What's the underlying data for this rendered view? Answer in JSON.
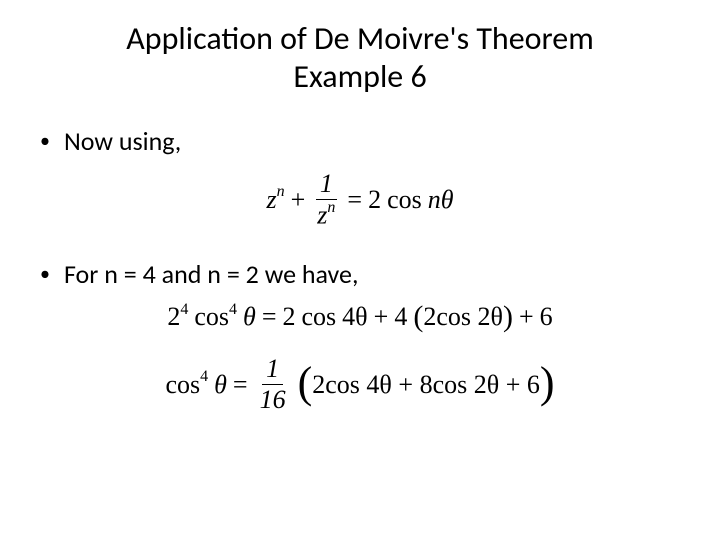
{
  "title_line1": "Application of De Moivre's Theorem",
  "title_line2": "Example 6",
  "bullet1": "Now using,",
  "bullet2": "For n = 4 and n = 2 we have,",
  "eq1": {
    "lhs_var": "z",
    "lhs_exp": "n",
    "plus": "+",
    "frac_num": "1",
    "frac_den_var": "z",
    "frac_den_exp": "n",
    "equals": "=",
    "rhs_coef": "2",
    "rhs_cos": "cos",
    "rhs_ntheta": "nθ"
  },
  "eq2": {
    "coef": "2",
    "coef_exp": "4",
    "cos": "cos",
    "cos_exp": "4",
    "theta": "θ",
    "equals": "=",
    "t1_coef": "2",
    "t1_cos": "cos",
    "t1_arg": "4θ",
    "plus1": "+",
    "t2_coef": "4",
    "t2_inner_coef": "2",
    "t2_inner_cos": "cos",
    "t2_inner_arg": "2θ",
    "plus2": "+",
    "const": "6"
  },
  "eq3": {
    "cos": "cos",
    "cos_exp": "4",
    "theta": "θ",
    "equals": "=",
    "frac_num": "1",
    "frac_den": "16",
    "t1_coef": "2",
    "t1_cos": "cos",
    "t1_arg": "4θ",
    "plus1": "+",
    "t2_coef": "8",
    "t2_cos": "cos",
    "t2_arg": "2θ",
    "plus2": "+",
    "const": "6"
  },
  "colors": {
    "text": "#000000",
    "background": "#ffffff"
  },
  "fonts": {
    "body": "Calibri",
    "math": "Times New Roman"
  }
}
